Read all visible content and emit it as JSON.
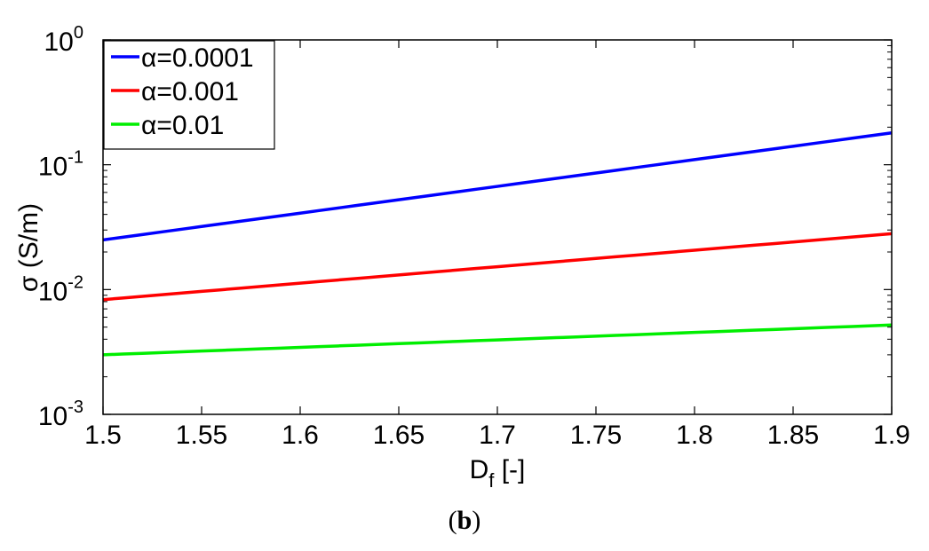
{
  "caption": {
    "open": "(",
    "letter": "b",
    "close": ")"
  },
  "chart_data": {
    "type": "line",
    "xlabel": {
      "main": "D",
      "sub": "f",
      "rest": " [-]"
    },
    "ylabel": "σ (S/m)",
    "xlim": [
      1.5,
      1.9
    ],
    "ylim": [
      0.001,
      1
    ],
    "yscale": "log",
    "grid": false,
    "legend_position": "top-left",
    "xticks": [
      1.5,
      1.55,
      1.6,
      1.65,
      1.7,
      1.75,
      1.8,
      1.85,
      1.9
    ],
    "xtick_labels": [
      "1.5",
      "1.55",
      "1.6",
      "1.65",
      "1.7",
      "1.75",
      "1.8",
      "1.85",
      "1.9"
    ],
    "yticks": [
      {
        "value": 0.001,
        "base": "10",
        "exp": "-3"
      },
      {
        "value": 0.01,
        "base": "10",
        "exp": "-2"
      },
      {
        "value": 0.1,
        "base": "10",
        "exp": "-1"
      },
      {
        "value": 1,
        "base": "10",
        "exp": "0"
      }
    ],
    "series": [
      {
        "name": "α=0.0001",
        "color": "#0000ff",
        "x": [
          1.5,
          1.9
        ],
        "y": [
          0.025,
          0.18
        ]
      },
      {
        "name": "α=0.001",
        "color": "#ff0000",
        "x": [
          1.5,
          1.9
        ],
        "y": [
          0.0083,
          0.028
        ]
      },
      {
        "name": "α=0.01",
        "color": "#00ee00",
        "x": [
          1.5,
          1.9
        ],
        "y": [
          0.003,
          0.0052
        ]
      }
    ]
  }
}
